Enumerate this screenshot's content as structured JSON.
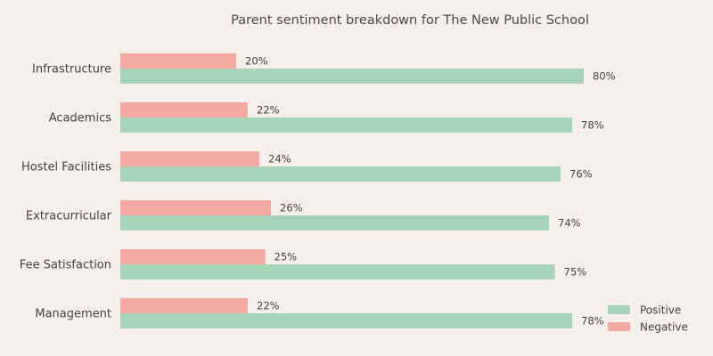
{
  "chart_data": {
    "type": "bar",
    "orientation": "horizontal",
    "title": "Parent sentiment breakdown for The New Public School",
    "xlabel": "",
    "ylabel": "",
    "categories": [
      "Infrastructure",
      "Academics",
      "Hostel Facilities",
      "Extracurricular",
      "Fee Satisfaction",
      "Management"
    ],
    "series": [
      {
        "name": "Negative",
        "values": [
          20,
          22,
          24,
          26,
          25,
          22
        ],
        "labels": [
          "20%",
          "22%",
          "24%",
          "26%",
          "25%",
          "22%"
        ],
        "color": "#f4a9a3"
      },
      {
        "name": "Positive",
        "values": [
          80,
          78,
          76,
          74,
          75,
          78
        ],
        "labels": [
          "80%",
          "78%",
          "76%",
          "74%",
          "75%",
          "78%"
        ],
        "color": "#a8d5ba"
      }
    ],
    "xlim": [
      0,
      100
    ],
    "grid": false,
    "legend_position": "bottom-right",
    "legend_order": [
      "Positive",
      "Negative"
    ]
  }
}
